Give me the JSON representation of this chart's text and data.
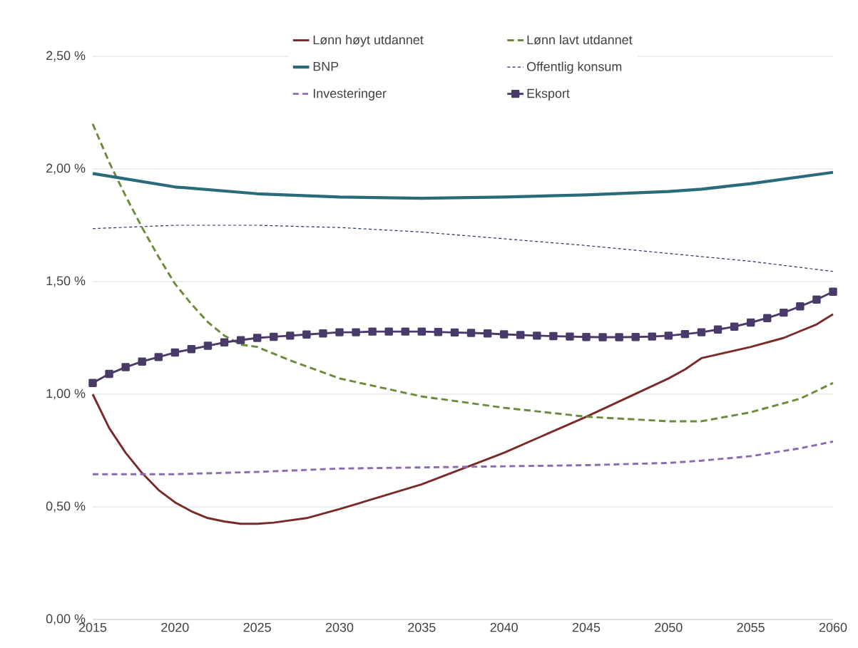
{
  "chart_data": {
    "type": "line",
    "xlim": [
      2015,
      2060
    ],
    "xticks": [
      2015,
      2020,
      2025,
      2030,
      2035,
      2040,
      2045,
      2050,
      2055,
      2060
    ],
    "ylim": [
      0,
      2.5
    ],
    "yticks": [
      {
        "value": 0,
        "label": "0,00 %"
      },
      {
        "value": 0.5,
        "label": "0,50 %"
      },
      {
        "value": 1.0,
        "label": "1,00 %"
      },
      {
        "value": 1.5,
        "label": "1,50 %"
      },
      {
        "value": 2.0,
        "label": "2,00 %"
      },
      {
        "value": 2.5,
        "label": "2,50 %"
      }
    ],
    "grid": "y",
    "legend": "top",
    "series": [
      {
        "name": "Lønn høyt utdannet",
        "color": "#7b2a2a",
        "line_style": "solid",
        "marker": "none",
        "x": [
          2015,
          2016,
          2017,
          2018,
          2019,
          2020,
          2021,
          2022,
          2023,
          2024,
          2025,
          2026,
          2027,
          2028,
          2030,
          2035,
          2040,
          2045,
          2050,
          2051,
          2052,
          2055,
          2057,
          2058,
          2059,
          2060
        ],
        "values": [
          1.0,
          0.85,
          0.74,
          0.65,
          0.575,
          0.52,
          0.48,
          0.45,
          0.435,
          0.425,
          0.425,
          0.43,
          0.44,
          0.45,
          0.49,
          0.6,
          0.74,
          0.9,
          1.07,
          1.11,
          1.16,
          1.21,
          1.25,
          1.28,
          1.31,
          1.355
        ]
      },
      {
        "name": "Lønn lavt utdannet",
        "color": "#6b8a3a",
        "line_style": "dashed",
        "marker": "none",
        "x": [
          2015,
          2016,
          2017,
          2018,
          2019,
          2020,
          2021,
          2022,
          2023,
          2024,
          2025,
          2027,
          2030,
          2035,
          2040,
          2045,
          2050,
          2052,
          2055,
          2058,
          2060
        ],
        "values": [
          2.2,
          2.03,
          1.88,
          1.74,
          1.61,
          1.49,
          1.4,
          1.32,
          1.26,
          1.22,
          1.21,
          1.15,
          1.07,
          0.99,
          0.94,
          0.9,
          0.88,
          0.88,
          0.92,
          0.98,
          1.05
        ]
      },
      {
        "name": "BNP",
        "color": "#2a6b7b",
        "line_style": "solid",
        "marker": "none",
        "x": [
          2015,
          2020,
          2025,
          2030,
          2035,
          2040,
          2045,
          2050,
          2052,
          2055,
          2060
        ],
        "values": [
          1.98,
          1.92,
          1.89,
          1.875,
          1.87,
          1.875,
          1.885,
          1.9,
          1.91,
          1.935,
          1.985
        ]
      },
      {
        "name": "Offentlig konsum",
        "color": "#1f2f5f",
        "line_style": "dashed",
        "marker": "none",
        "x": [
          2015,
          2020,
          2025,
          2030,
          2035,
          2040,
          2045,
          2050,
          2055,
          2060
        ],
        "values": [
          1.735,
          1.75,
          1.75,
          1.74,
          1.72,
          1.69,
          1.66,
          1.625,
          1.59,
          1.545
        ]
      },
      {
        "name": "Investeringer",
        "color": "#8a6bb0",
        "line_style": "dashed",
        "marker": "none",
        "x": [
          2015,
          2020,
          2025,
          2030,
          2035,
          2040,
          2045,
          2050,
          2052,
          2055,
          2058,
          2060
        ],
        "values": [
          0.645,
          0.645,
          0.655,
          0.67,
          0.675,
          0.68,
          0.685,
          0.695,
          0.705,
          0.725,
          0.76,
          0.79
        ]
      },
      {
        "name": "Eksport",
        "color": "#4a3a6a",
        "line_style": "solid",
        "marker": "square",
        "x": [
          2015,
          2016,
          2017,
          2018,
          2019,
          2020,
          2021,
          2022,
          2023,
          2024,
          2025,
          2026,
          2027,
          2028,
          2029,
          2030,
          2031,
          2032,
          2033,
          2034,
          2035,
          2036,
          2037,
          2038,
          2039,
          2040,
          2041,
          2042,
          2043,
          2044,
          2045,
          2046,
          2047,
          2048,
          2049,
          2050,
          2051,
          2052,
          2053,
          2054,
          2055,
          2056,
          2057,
          2058,
          2059,
          2060
        ],
        "values": [
          1.05,
          1.09,
          1.12,
          1.145,
          1.165,
          1.185,
          1.2,
          1.215,
          1.23,
          1.24,
          1.25,
          1.255,
          1.26,
          1.265,
          1.27,
          1.275,
          1.275,
          1.278,
          1.278,
          1.278,
          1.278,
          1.276,
          1.274,
          1.272,
          1.27,
          1.266,
          1.263,
          1.26,
          1.258,
          1.256,
          1.254,
          1.253,
          1.253,
          1.254,
          1.256,
          1.26,
          1.267,
          1.275,
          1.287,
          1.3,
          1.318,
          1.338,
          1.362,
          1.39,
          1.42,
          1.455
        ]
      }
    ]
  }
}
